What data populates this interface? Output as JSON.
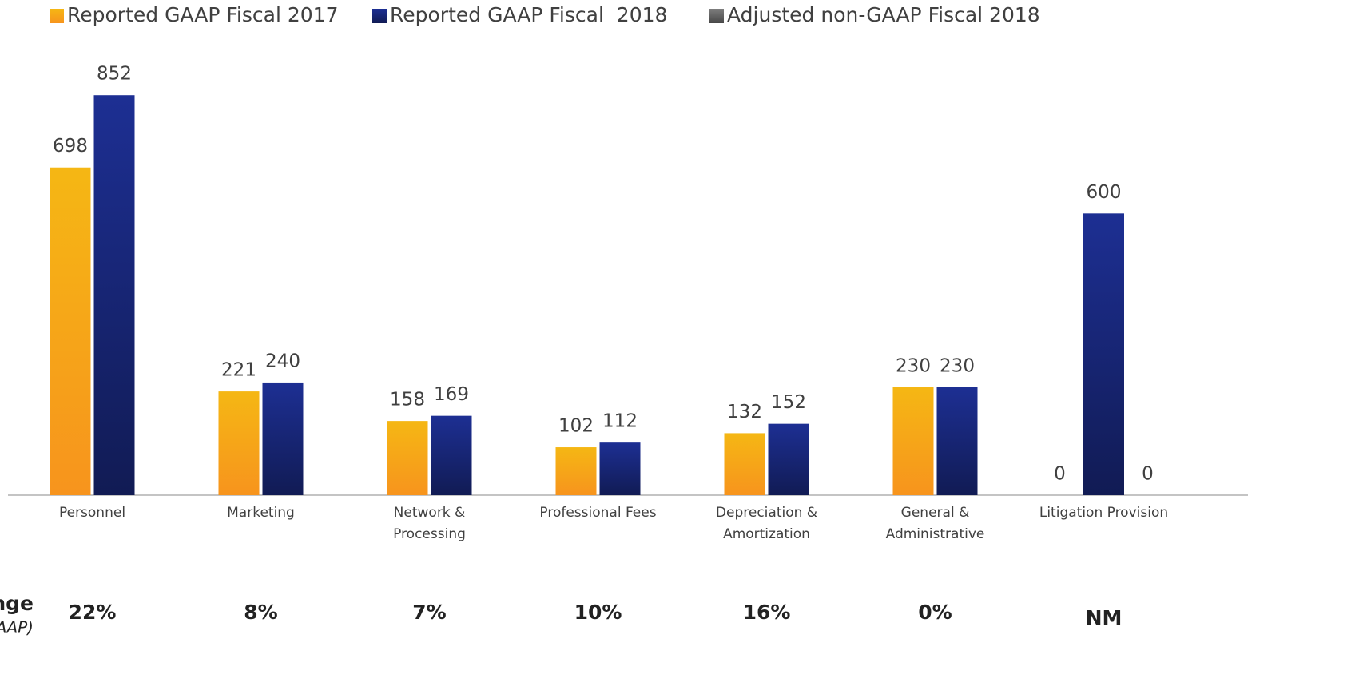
{
  "chart_data": {
    "type": "bar",
    "categories": [
      "Personnel",
      "Marketing",
      "Network & Processing",
      "Professional Fees",
      "Depreciation & Amortization",
      "General & Administrative",
      "Litigation Provision"
    ],
    "series": [
      {
        "name": "Reported GAAP Fiscal 2017",
        "color": "#f5b714",
        "values": [
          698,
          221,
          158,
          102,
          132,
          230,
          0
        ]
      },
      {
        "name": "Reported GAAP Fiscal  2018",
        "color": "#1c2d8c",
        "values": [
          852,
          240,
          169,
          112,
          152,
          230,
          600
        ]
      },
      {
        "name": "Adjusted non-GAAP Fiscal 2018",
        "color": "#777777",
        "values": [
          null,
          null,
          null,
          null,
          null,
          null,
          0
        ]
      }
    ],
    "ylim": [
      0,
      900
    ],
    "change_label": [
      "% Change",
      "(non-GAAP)"
    ],
    "changes": [
      "22%",
      "8%",
      "7%",
      "10%",
      "16%",
      "0%",
      "NM"
    ]
  }
}
